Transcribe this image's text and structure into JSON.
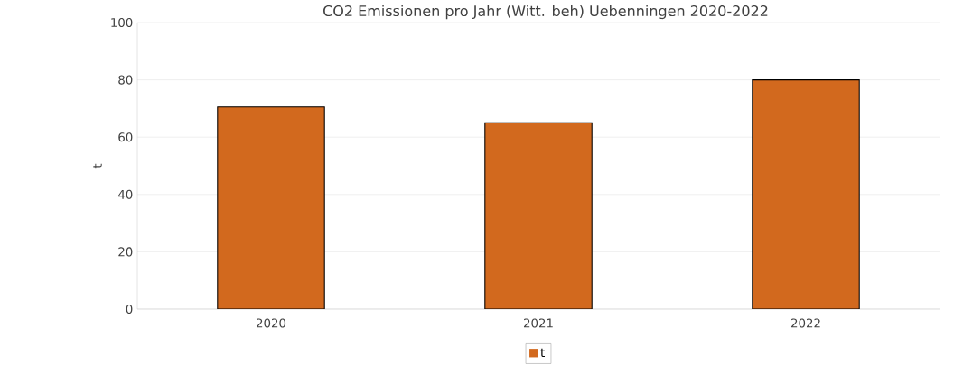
{
  "chart_data": {
    "type": "bar",
    "title": "CO2 Emissionen pro Jahr (Witt. beh) Uebenningen 2020-2022",
    "ylabel": "t",
    "categories": [
      "2020",
      "2021",
      "2022"
    ],
    "series": [
      {
        "name": "t",
        "color": "#d2691e",
        "values": [
          70.5,
          65,
          80
        ]
      }
    ],
    "ylim": [
      0,
      100
    ],
    "yticks": [
      0,
      20,
      40,
      60,
      80,
      100
    ],
    "grid": "y",
    "legend": "bottom"
  }
}
